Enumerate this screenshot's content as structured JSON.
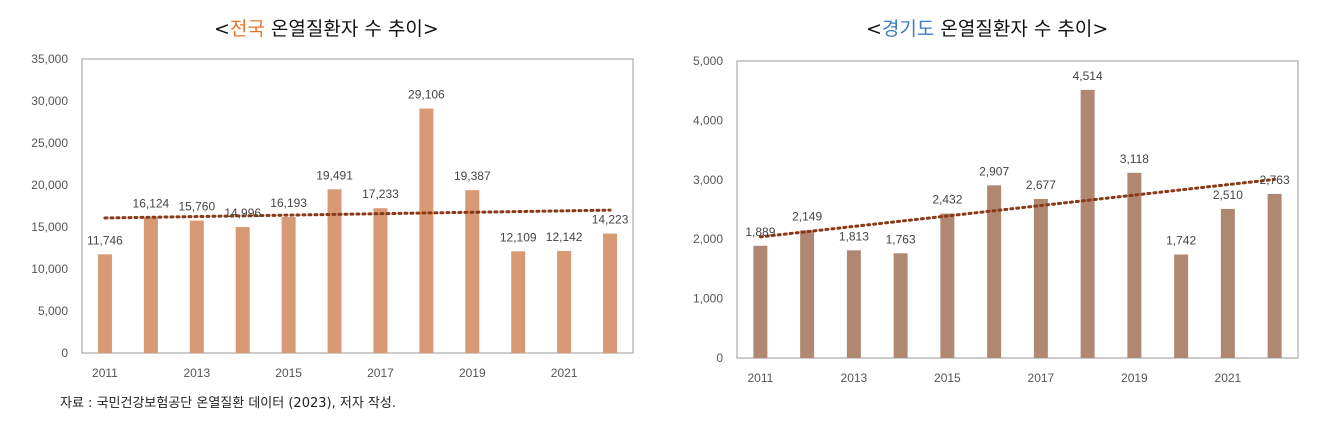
{
  "source_note": "자료 : 국민건강보험공단 온열질환 데이터 (2023), 저자 작성.",
  "chart_data": [
    {
      "type": "bar",
      "title_prefix": "<",
      "title_highlight": "전국",
      "title_rest": " 온열질환자 수 추이>",
      "bar_color": "#d89a74",
      "trend_color": "#8b3a17",
      "x": [
        2011,
        2012,
        2013,
        2014,
        2015,
        2016,
        2017,
        2018,
        2019,
        2020,
        2021,
        2022
      ],
      "values": [
        11746,
        16124,
        15760,
        14996,
        16193,
        19491,
        17233,
        29106,
        19387,
        12109,
        12142,
        14223
      ],
      "value_labels": [
        "11,746",
        "16,124",
        "15,760",
        "14,996",
        "16,193",
        "19,491",
        "17,233",
        "29,106",
        "19,387",
        "12,109",
        "12,142",
        "14,223"
      ],
      "xtick_labels": [
        "2011",
        "2013",
        "2015",
        "2017",
        "2019",
        "2021"
      ],
      "ytick_values": [
        0,
        5000,
        10000,
        15000,
        20000,
        25000,
        30000,
        35000
      ],
      "ytick_labels": [
        "0",
        "5,000",
        "10,000",
        "15,000",
        "20,000",
        "25,000",
        "30,000",
        "35,000"
      ],
      "ylim": [
        0,
        35000
      ],
      "trendline": "linear, dotted"
    },
    {
      "type": "bar",
      "title_prefix": "<",
      "title_highlight": "경기도",
      "title_rest": " 온열질환자 수 추이>",
      "bar_color": "#b08872",
      "trend_color": "#8b3a17",
      "x": [
        2011,
        2012,
        2013,
        2014,
        2015,
        2016,
        2017,
        2018,
        2019,
        2020,
        2021,
        2022
      ],
      "values": [
        1889,
        2149,
        1813,
        1763,
        2432,
        2907,
        2677,
        4514,
        3118,
        1742,
        2510,
        2763
      ],
      "value_labels": [
        "1,889",
        "2,149",
        "1,813",
        "1,763",
        "2,432",
        "2,907",
        "2,677",
        "4,514",
        "3,118",
        "1,742",
        "2,510",
        "2,763"
      ],
      "xtick_labels": [
        "2011",
        "2013",
        "2015",
        "2017",
        "2019",
        "2021"
      ],
      "ytick_values": [
        0,
        1000,
        2000,
        3000,
        4000,
        5000
      ],
      "ytick_labels": [
        "0",
        "1,000",
        "2,000",
        "3,000",
        "4,000",
        "5,000"
      ],
      "ylim": [
        0,
        5000
      ],
      "trendline": "linear, dotted"
    }
  ]
}
